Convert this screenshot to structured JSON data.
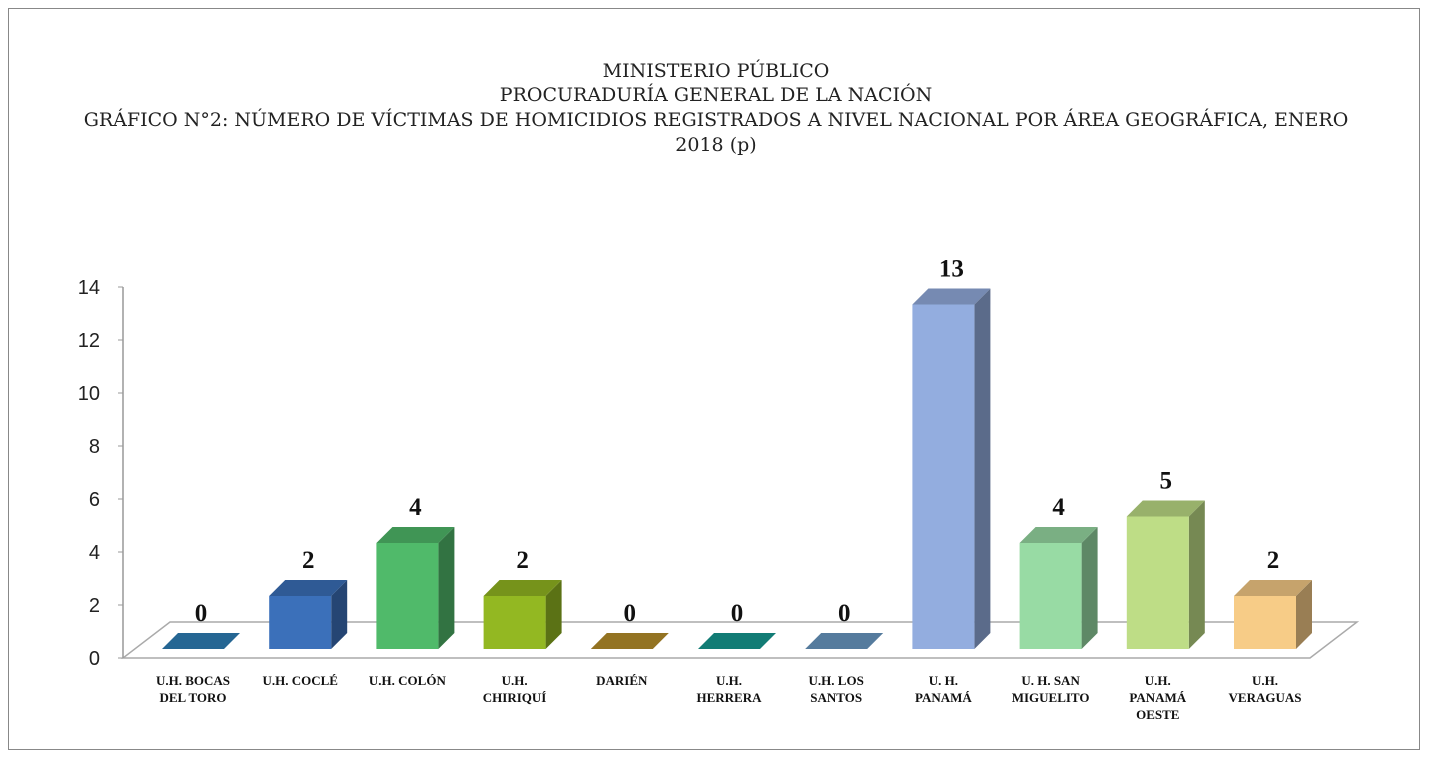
{
  "chart_data": {
    "type": "bar3d",
    "title": [
      "MINISTERIO PÚBLICO",
      "PROCURADURÍA GENERAL DE LA NACIÓN",
      "GRÁFICO N°2: NÚMERO DE VÍCTIMAS DE HOMICIDIOS REGISTRADOS A NIVEL NACIONAL POR ÁREA GEOGRÁFICA, ENERO 2018 (p)"
    ],
    "categories": [
      "U.H. BOCAS DEL TORO",
      "U.H. COCLÉ",
      "U.H. COLÓN",
      "U.H. CHIRIQUÍ",
      "DARIÉN",
      "U.H. HERRERA",
      "U.H. LOS SANTOS",
      "U. H. PANAMÁ",
      "U. H. SAN MIGUELITO",
      "U.H. PANAMÁ OESTE",
      "U.H. VERAGUAS"
    ],
    "values": [
      0,
      2,
      4,
      2,
      0,
      0,
      0,
      13,
      4,
      5,
      2
    ],
    "colors": [
      "#2e7fb8",
      "#3b70ba",
      "#50ba6a",
      "#93b822",
      "#b8902a",
      "#169b92",
      "#6a9ac4",
      "#93addf",
      "#98dba4",
      "#bedd86",
      "#f7cc87"
    ],
    "ylim": [
      0,
      14
    ],
    "yticks": [
      0,
      2,
      4,
      6,
      8,
      10,
      12,
      14
    ]
  }
}
